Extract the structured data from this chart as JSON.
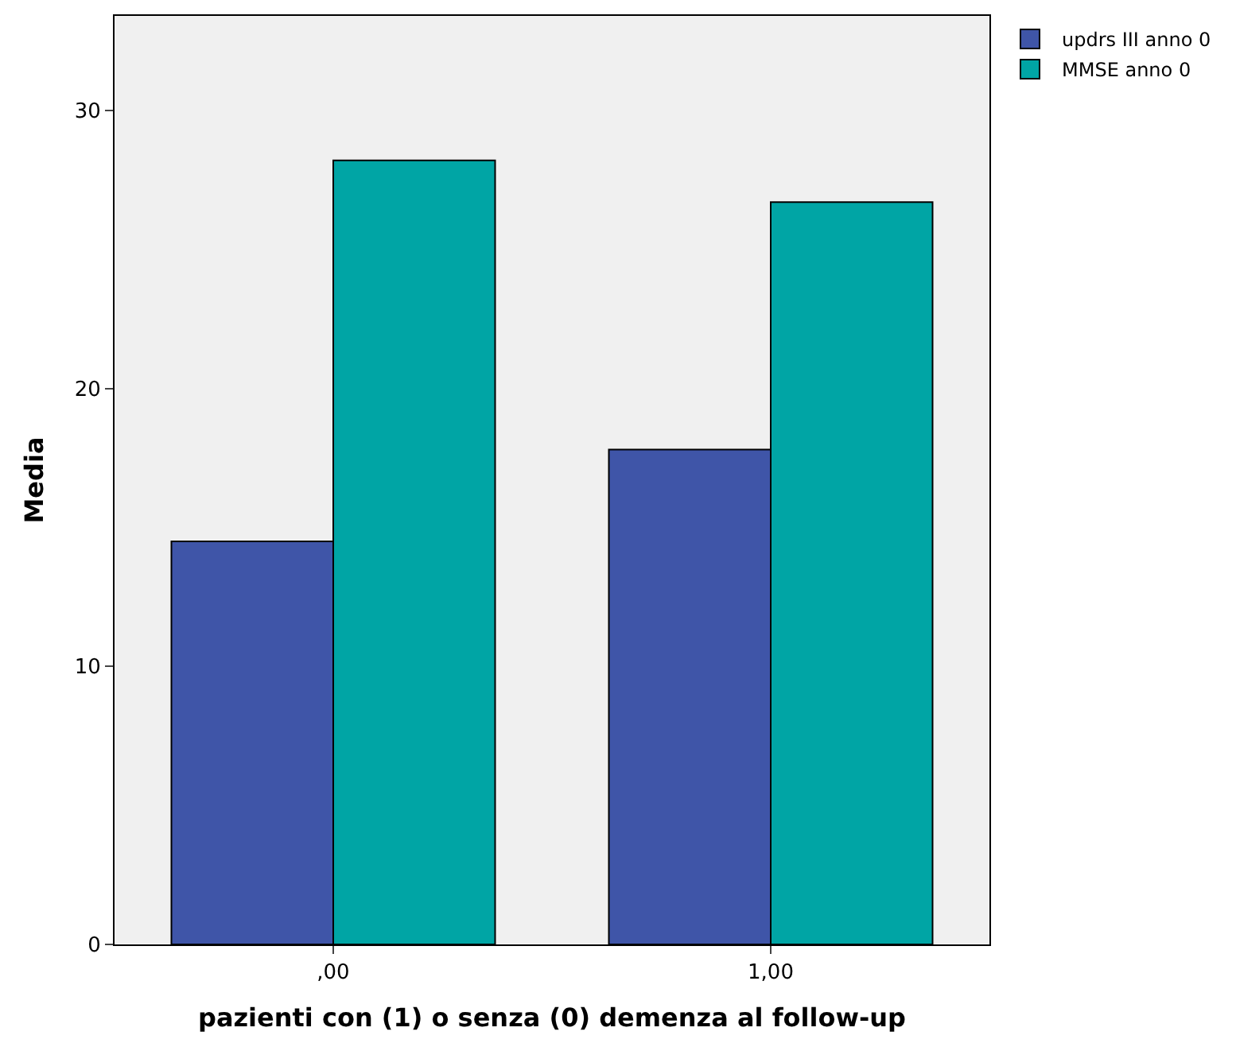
{
  "chart_data": {
    "type": "bar",
    "xlabel": "pazienti con (1) o senza (0) demenza al follow-up",
    "ylabel": "Media",
    "categories": [
      ",00",
      "1,00"
    ],
    "series": [
      {
        "name": "updrs III anno 0",
        "color": "#3f55a8",
        "values": [
          14.5,
          17.8
        ]
      },
      {
        "name": "MMSE anno 0",
        "color": "#00a5a5",
        "values": [
          28.2,
          26.7
        ]
      }
    ],
    "ylim": [
      0,
      33.4
    ],
    "yticks": [
      0,
      10,
      20,
      30
    ],
    "grid": false,
    "legend": "top right"
  }
}
